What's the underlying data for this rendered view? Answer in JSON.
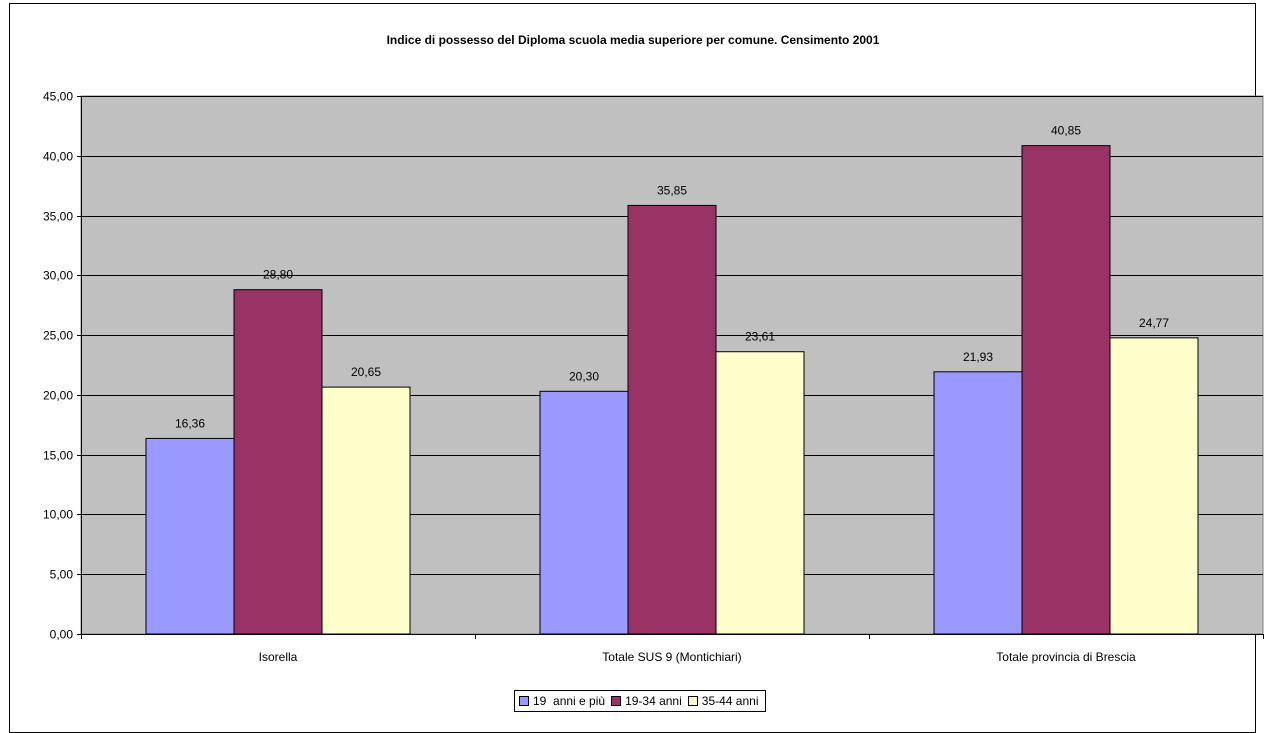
{
  "chart_data": {
    "type": "bar",
    "title": "Indice di possesso del Diploma scuola media superiore per comune. Censimento 2001",
    "categories": [
      "Isorella",
      "Totale SUS 9 (Montichiari)",
      "Totale provincia di Brescia"
    ],
    "series": [
      {
        "name": "19  anni e più",
        "color": "#9999ff",
        "values": [
          16.36,
          20.3,
          21.93
        ],
        "labels": [
          "16,36",
          "20,30",
          "21,93"
        ]
      },
      {
        "name": "19-34 anni",
        "color": "#993366",
        "values": [
          28.8,
          35.85,
          40.85
        ],
        "labels": [
          "28,80",
          "35,85",
          "40,85"
        ]
      },
      {
        "name": "35-44 anni",
        "color": "#ffffcc",
        "values": [
          20.65,
          23.61,
          24.77
        ],
        "labels": [
          "20,65",
          "23,61",
          "24,77"
        ]
      }
    ],
    "ylim": [
      0,
      45
    ],
    "yticks": [
      0,
      5,
      10,
      15,
      20,
      25,
      30,
      35,
      40,
      45
    ],
    "ytick_labels": [
      "0,00",
      "5,00",
      "10,00",
      "15,00",
      "20,00",
      "25,00",
      "30,00",
      "35,00",
      "40,00",
      "45,00"
    ],
    "xlabel": "",
    "ylabel": "",
    "grid": true,
    "plot_background": "#c0c0c0",
    "legend_position": "bottom"
  }
}
